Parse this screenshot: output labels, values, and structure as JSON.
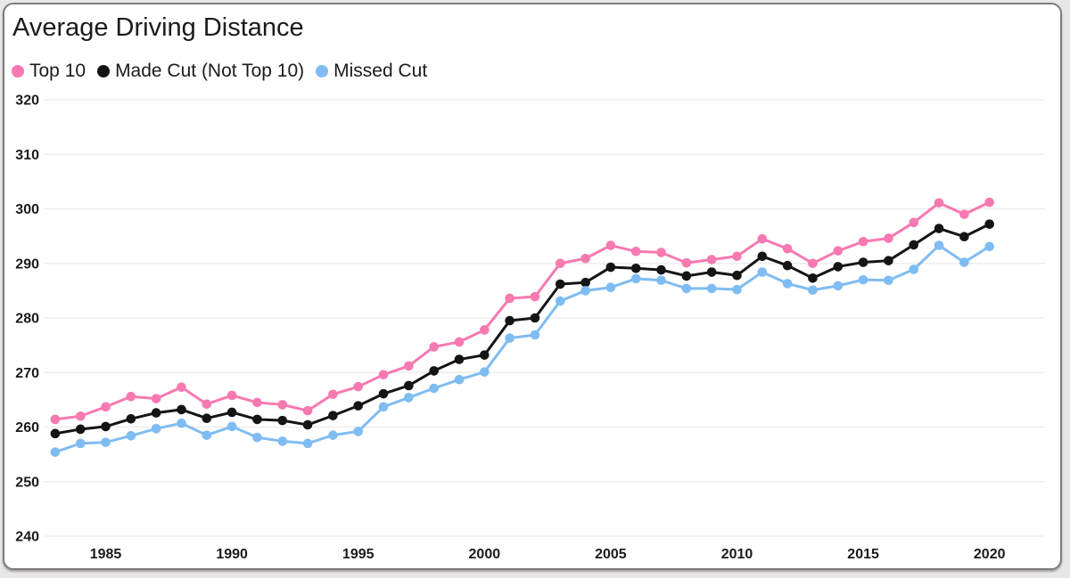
{
  "card": {
    "title": "Average Driving Distance"
  },
  "legend": {
    "items": [
      {
        "label": "Top 10"
      },
      {
        "label": "Made Cut (Not Top 10)"
      },
      {
        "label": "Missed Cut"
      }
    ]
  },
  "chart_data": {
    "type": "line",
    "title": "Average Driving Distance",
    "x": [
      1983,
      1984,
      1985,
      1986,
      1987,
      1988,
      1989,
      1990,
      1991,
      1992,
      1993,
      1994,
      1995,
      1996,
      1997,
      1998,
      1999,
      2000,
      2001,
      2002,
      2003,
      2004,
      2005,
      2006,
      2007,
      2008,
      2009,
      2010,
      2011,
      2012,
      2013,
      2014,
      2015,
      2016,
      2017,
      2018,
      2019,
      2020
    ],
    "series": [
      {
        "name": "Top 10",
        "color": "#f779b1",
        "values": [
          261.4,
          262.0,
          263.7,
          265.6,
          265.2,
          267.3,
          264.2,
          265.8,
          264.5,
          264.1,
          263.0,
          266.0,
          267.4,
          269.6,
          271.2,
          274.7,
          275.6,
          277.8,
          283.6,
          283.9,
          290.0,
          290.9,
          293.3,
          292.2,
          292.0,
          290.1,
          290.7,
          291.3,
          294.5,
          292.7,
          290.0,
          292.3,
          294.0,
          294.6,
          297.5,
          301.1,
          299.0,
          301.2
        ]
      },
      {
        "name": "Made Cut (Not Top 10)",
        "color": "#141414",
        "values": [
          258.8,
          259.6,
          260.1,
          261.5,
          262.6,
          263.2,
          261.6,
          262.7,
          261.4,
          261.2,
          260.4,
          262.1,
          263.9,
          266.1,
          267.6,
          270.3,
          272.4,
          273.2,
          279.5,
          280.0,
          286.2,
          286.5,
          289.3,
          289.1,
          288.8,
          287.7,
          288.4,
          287.8,
          291.3,
          289.6,
          287.3,
          289.4,
          290.2,
          290.5,
          293.4,
          296.4,
          294.9,
          297.2
        ]
      },
      {
        "name": "Missed Cut",
        "color": "#7fbcf2",
        "values": [
          255.4,
          257.0,
          257.2,
          258.4,
          259.7,
          260.7,
          258.5,
          260.1,
          258.1,
          257.4,
          257.0,
          258.5,
          259.2,
          263.7,
          265.4,
          267.1,
          268.7,
          270.1,
          276.3,
          276.9,
          283.1,
          285.0,
          285.6,
          287.2,
          286.9,
          285.4,
          285.4,
          285.2,
          288.4,
          286.3,
          285.1,
          285.9,
          287.0,
          286.9,
          288.9,
          293.3,
          290.2,
          293.1
        ]
      }
    ],
    "xticks": [
      1985,
      1990,
      1995,
      2000,
      2005,
      2010,
      2015,
      2020
    ],
    "yticks": [
      240,
      250,
      260,
      270,
      280,
      290,
      300,
      310,
      320
    ],
    "ylim": [
      240,
      320
    ],
    "xlim": [
      1982.58,
      2022.2
    ],
    "grid": "horizontal-only",
    "grid_color": "#ededed",
    "legend_position": "top-left"
  }
}
